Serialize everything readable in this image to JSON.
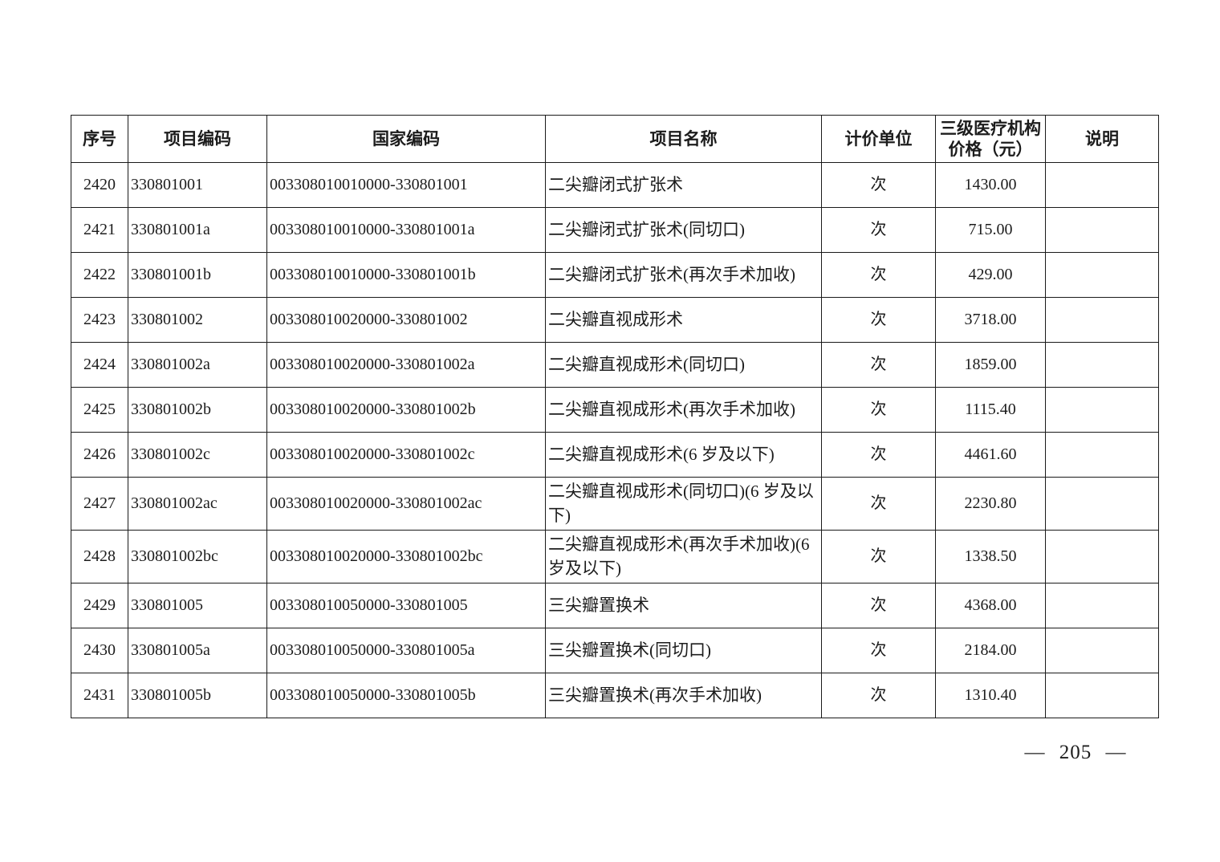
{
  "table": {
    "headers": {
      "index": "序号",
      "project_code": "项目编码",
      "national_code": "国家编码",
      "name": "项目名称",
      "unit": "计价单位",
      "price_line1": "三级医疗机构",
      "price_line2": "价格（元）",
      "note": "说明"
    },
    "rows": [
      {
        "index": "2420",
        "project_code": "330801001",
        "national_code": "003308010010000-330801001",
        "name": "二尖瓣闭式扩张术",
        "unit": "次",
        "price": "1430.00",
        "note": ""
      },
      {
        "index": "2421",
        "project_code": "330801001a",
        "national_code": "003308010010000-330801001a",
        "name": "二尖瓣闭式扩张术(同切口)",
        "unit": "次",
        "price": "715.00",
        "note": ""
      },
      {
        "index": "2422",
        "project_code": "330801001b",
        "national_code": "003308010010000-330801001b",
        "name": "二尖瓣闭式扩张术(再次手术加收)",
        "unit": "次",
        "price": "429.00",
        "note": ""
      },
      {
        "index": "2423",
        "project_code": "330801002",
        "national_code": "003308010020000-330801002",
        "name": "二尖瓣直视成形术",
        "unit": "次",
        "price": "3718.00",
        "note": ""
      },
      {
        "index": "2424",
        "project_code": "330801002a",
        "national_code": "003308010020000-330801002a",
        "name": "二尖瓣直视成形术(同切口)",
        "unit": "次",
        "price": "1859.00",
        "note": ""
      },
      {
        "index": "2425",
        "project_code": "330801002b",
        "national_code": "003308010020000-330801002b",
        "name": "二尖瓣直视成形术(再次手术加收)",
        "unit": "次",
        "price": "1115.40",
        "note": ""
      },
      {
        "index": "2426",
        "project_code": "330801002c",
        "national_code": "003308010020000-330801002c",
        "name": "二尖瓣直视成形术(6 岁及以下)",
        "unit": "次",
        "price": "4461.60",
        "note": ""
      },
      {
        "index": "2427",
        "project_code": "330801002ac",
        "national_code": "003308010020000-330801002ac",
        "name": "二尖瓣直视成形术(同切口)(6 岁及以下)",
        "unit": "次",
        "price": "2230.80",
        "note": ""
      },
      {
        "index": "2428",
        "project_code": "330801002bc",
        "national_code": "003308010020000-330801002bc",
        "name": "二尖瓣直视成形术(再次手术加收)(6 岁及以下)",
        "unit": "次",
        "price": "1338.50",
        "note": ""
      },
      {
        "index": "2429",
        "project_code": "330801005",
        "national_code": "003308010050000-330801005",
        "name": "三尖瓣置换术",
        "unit": "次",
        "price": "4368.00",
        "note": ""
      },
      {
        "index": "2430",
        "project_code": "330801005a",
        "national_code": "003308010050000-330801005a",
        "name": "三尖瓣置换术(同切口)",
        "unit": "次",
        "price": "2184.00",
        "note": ""
      },
      {
        "index": "2431",
        "project_code": "330801005b",
        "national_code": "003308010050000-330801005b",
        "name": "三尖瓣置换术(再次手术加收)",
        "unit": "次",
        "price": "1310.40",
        "note": ""
      }
    ]
  },
  "footer": {
    "page_number": "205",
    "page_number_display": "— 205 —"
  }
}
